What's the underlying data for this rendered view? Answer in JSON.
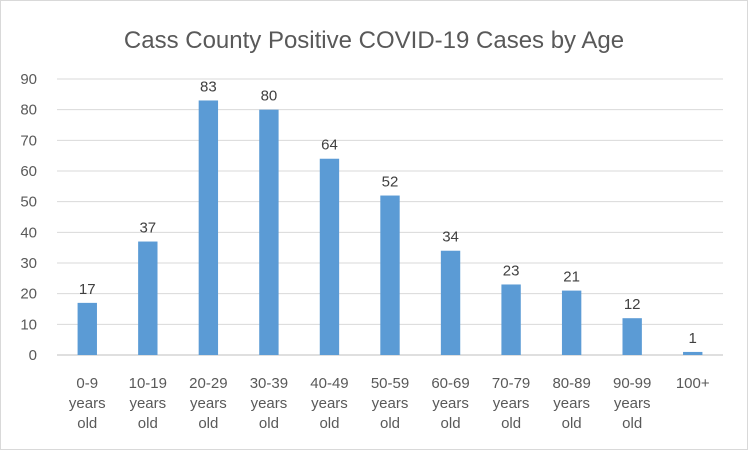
{
  "chart_data": {
    "type": "bar",
    "title": "Cass County Positive COVID-19 Cases by Age",
    "xlabel": "",
    "ylabel": "",
    "ylim": [
      0,
      90
    ],
    "yticks": [
      0,
      10,
      20,
      30,
      40,
      50,
      60,
      70,
      80,
      90
    ],
    "grid": true,
    "legend": "none",
    "bar_color": "#5b9bd5",
    "categories": [
      [
        "0-9",
        "years",
        "old"
      ],
      [
        "10-19",
        "years",
        "old"
      ],
      [
        "20-29",
        "years",
        "old"
      ],
      [
        "30-39",
        "years",
        "old"
      ],
      [
        "40-49",
        "years",
        "old"
      ],
      [
        "50-59",
        "years",
        "old"
      ],
      [
        "60-69",
        "years",
        "old"
      ],
      [
        "70-79",
        "years",
        "old"
      ],
      [
        "80-89",
        "years",
        "old"
      ],
      [
        "90-99",
        "years",
        "old"
      ],
      [
        "100+"
      ]
    ],
    "values": [
      17,
      37,
      83,
      80,
      64,
      52,
      34,
      23,
      21,
      12,
      1
    ]
  }
}
